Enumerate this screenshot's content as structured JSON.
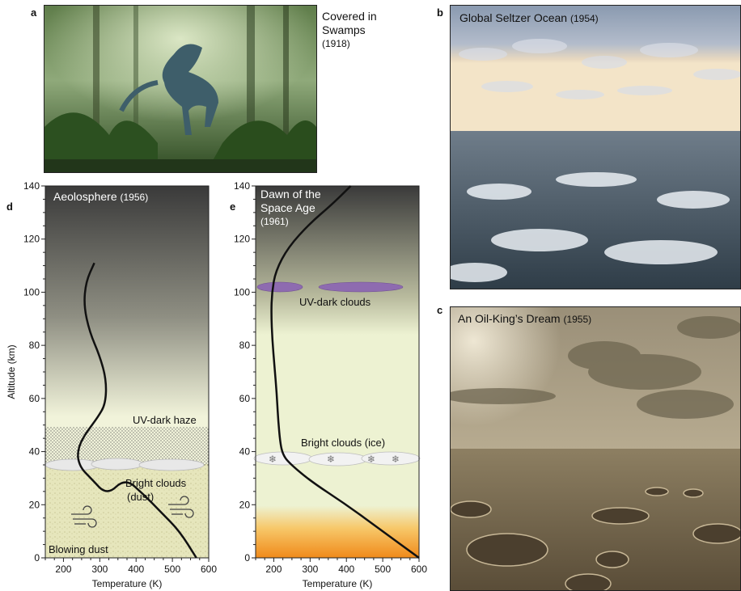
{
  "panels": {
    "a": {
      "letter": "a",
      "caption_main": "Covered in Swamps",
      "caption_year": "(1918)"
    },
    "b": {
      "letter": "b",
      "title": "Global Seltzer Ocean",
      "year": "(1954)"
    },
    "c": {
      "letter": "c",
      "title": "An Oil-King’s Dream",
      "year": "(1955)"
    },
    "d": {
      "letter": "d",
      "title": "Aeolosphere",
      "year": "(1956)"
    },
    "e": {
      "letter": "e",
      "title_line1": "Dawn of the",
      "title_line2": "Space Age",
      "year": "(1961)"
    }
  },
  "chart_data": [
    {
      "type": "line",
      "panel": "d",
      "title": "Aeolosphere (1956)",
      "xlabel": "Temperature (K)",
      "ylabel": "Altitude (km)",
      "xlim": [
        150,
        600
      ],
      "ylim": [
        0,
        140
      ],
      "x_ticks": [
        200,
        300,
        400,
        500,
        600
      ],
      "y_ticks": [
        0,
        20,
        40,
        60,
        80,
        100,
        120,
        140
      ],
      "series": [
        {
          "x": [
            566,
            520,
            470,
            420,
            370,
            320,
            275,
            250,
            240,
            240,
            246,
            262,
            295,
            316,
            318,
            300,
            272,
            256,
            262,
            285
          ],
          "y": [
            0,
            10,
            17,
            24,
            30,
            23.5,
            30,
            33.5,
            37,
            40,
            43,
            47,
            53,
            58,
            67,
            76,
            85,
            95,
            104,
            111
          ]
        }
      ],
      "annotations": [
        "UV-dark haze",
        "Bright clouds (dust)",
        "Blowing dust"
      ]
    },
    {
      "type": "line",
      "panel": "e",
      "xlabel": "Temperature (K)",
      "xlim": [
        150,
        600
      ],
      "ylim": [
        0,
        140
      ],
      "x_ticks": [
        200,
        300,
        400,
        500,
        600
      ],
      "y_ticks": [
        0,
        20,
        40,
        60,
        80,
        100,
        120,
        140
      ],
      "series": [
        {
          "x": [
            600,
            500,
            400,
            300,
            240,
            225,
            218,
            212,
            208,
            202,
            196,
            193,
            195,
            205,
            240,
            300,
            360,
            412
          ],
          "y": [
            0,
            10,
            20,
            29,
            36,
            39,
            43,
            52,
            62,
            72,
            82,
            92,
            100,
            108,
            117,
            126,
            133,
            140
          ]
        }
      ],
      "annotations": [
        "UV-dark clouds",
        "Bright clouds (ice)"
      ]
    }
  ],
  "labels": {
    "uv_haze": "UV-dark haze",
    "bright_dust_1": "Bright clouds",
    "bright_dust_2": "(dust)",
    "blowing_dust": "Blowing dust",
    "uv_clouds": "UV-dark clouds",
    "bright_ice": "Bright clouds (ice)"
  }
}
